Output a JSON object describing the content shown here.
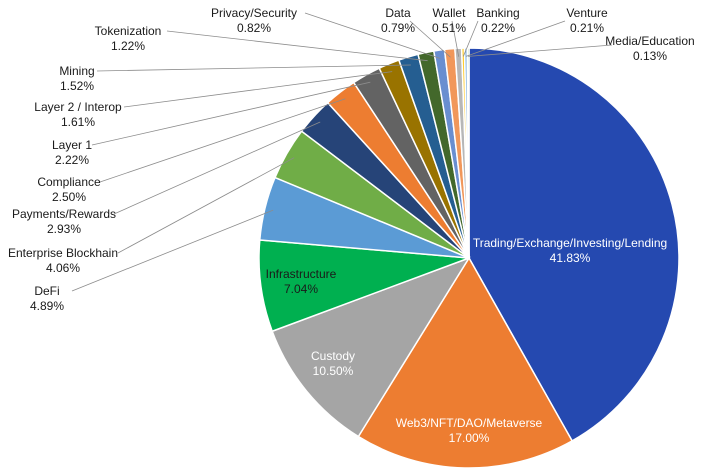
{
  "chart_data": {
    "type": "pie",
    "title": "",
    "unit": "%",
    "slices": [
      {
        "label": "Trading/Exchange/Investing/Lending",
        "value": 41.83,
        "value_label": "41.83%",
        "color": "#2549B0"
      },
      {
        "label": "Web3/NFT/DAO/Metaverse",
        "value": 17.0,
        "value_label": "17.00%",
        "color": "#ED7D31"
      },
      {
        "label": "Custody",
        "value": 10.5,
        "value_label": "10.50%",
        "color": "#A5A5A5"
      },
      {
        "label": "Infrastructure",
        "value": 7.04,
        "value_label": "7.04%",
        "color": "#00B050"
      },
      {
        "label": "DeFi",
        "value": 4.89,
        "value_label": "4.89%",
        "color": "#5B9BD5"
      },
      {
        "label": "Enterprise Blockhain",
        "value": 4.06,
        "value_label": "4.06%",
        "color": "#70AD47"
      },
      {
        "label": "Payments/Rewards",
        "value": 2.93,
        "value_label": "2.93%",
        "color": "#264478"
      },
      {
        "label": "Compliance",
        "value": 2.5,
        "value_label": "2.50%",
        "color": "#ED7D31"
      },
      {
        "label": "Layer 1",
        "value": 2.22,
        "value_label": "2.22%",
        "color": "#636363"
      },
      {
        "label": "Layer 2 / Interop",
        "value": 1.61,
        "value_label": "1.61%",
        "color": "#997300"
      },
      {
        "label": "Mining",
        "value": 1.52,
        "value_label": "1.52%",
        "color": "#255E91"
      },
      {
        "label": "Tokenization",
        "value": 1.22,
        "value_label": "1.22%",
        "color": "#43682B"
      },
      {
        "label": "Privacy/Security",
        "value": 0.82,
        "value_label": "0.82%",
        "color": "#698ED0"
      },
      {
        "label": "Data",
        "value": 0.79,
        "value_label": "0.79%",
        "color": "#F1975A"
      },
      {
        "label": "Wallet",
        "value": 0.51,
        "value_label": "0.51%",
        "color": "#B7B7B7"
      },
      {
        "label": "Banking",
        "value": 0.22,
        "value_label": "0.22%",
        "color": "#FFCD33"
      },
      {
        "label": "Venture",
        "value": 0.21,
        "value_label": "0.21%",
        "color": "#7CAFDD"
      },
      {
        "label": "Media/Education",
        "value": 0.13,
        "value_label": "0.13%",
        "color": "#8CC168"
      }
    ],
    "legend": "none",
    "label_position": "inside for large slices, outside with leader lines for small slices"
  }
}
